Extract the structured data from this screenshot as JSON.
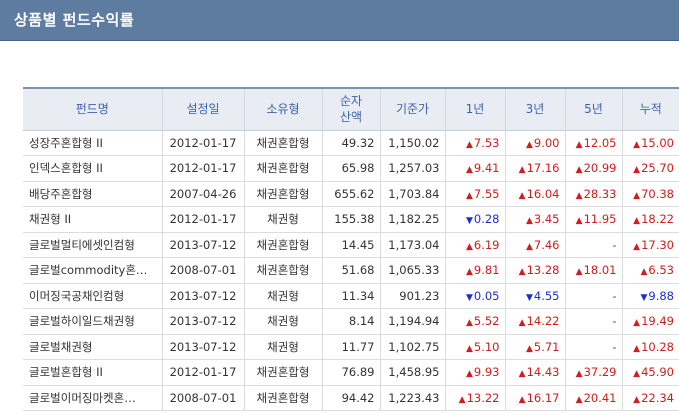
{
  "header": {
    "title": "상품별 펀드수익률"
  },
  "table": {
    "columns": [
      "펀드명",
      "설정일",
      "소유형",
      "순자\n산액",
      "기준가",
      "1년",
      "3년",
      "5년",
      "누적"
    ],
    "rows": [
      {
        "name": "성장주혼합형 II",
        "date": "2012-01-17",
        "type": "채권혼합형",
        "assets": "49.32",
        "nav": "1,150.02",
        "y1": "7.53",
        "y1d": "up",
        "y3": "9.00",
        "y3d": "up",
        "y5": "12.05",
        "y5d": "up",
        "cum": "15.00",
        "cumd": "up"
      },
      {
        "name": "인덱스혼합형 II",
        "date": "2012-01-17",
        "type": "채권혼합형",
        "assets": "65.98",
        "nav": "1,257.03",
        "y1": "9.41",
        "y1d": "up",
        "y3": "17.16",
        "y3d": "up",
        "y5": "20.99",
        "y5d": "up",
        "cum": "25.70",
        "cumd": "up"
      },
      {
        "name": "배당주혼합형",
        "date": "2007-04-26",
        "type": "채권혼합형",
        "assets": "655.62",
        "nav": "1,703.84",
        "y1": "7.55",
        "y1d": "up",
        "y3": "16.04",
        "y3d": "up",
        "y5": "28.33",
        "y5d": "up",
        "cum": "70.38",
        "cumd": "up"
      },
      {
        "name": "채권형 II",
        "date": "2012-01-17",
        "type": "채권형",
        "assets": "155.38",
        "nav": "1,182.25",
        "y1": "0.28",
        "y1d": "down",
        "y3": "3.45",
        "y3d": "up",
        "y5": "11.95",
        "y5d": "up",
        "cum": "18.22",
        "cumd": "up"
      },
      {
        "name": "글로벌멀티에셋인컴형",
        "date": "2013-07-12",
        "type": "채권혼합형",
        "assets": "14.45",
        "nav": "1,173.04",
        "y1": "6.19",
        "y1d": "up",
        "y3": "7.46",
        "y3d": "up",
        "y5": "-",
        "y5d": "none",
        "cum": "17.30",
        "cumd": "up"
      },
      {
        "name": "글로벌commodity혼…",
        "date": "2008-07-01",
        "type": "채권혼합형",
        "assets": "51.68",
        "nav": "1,065.33",
        "y1": "9.81",
        "y1d": "up",
        "y3": "13.28",
        "y3d": "up",
        "y5": "18.01",
        "y5d": "up",
        "cum": "6.53",
        "cumd": "up"
      },
      {
        "name": "이머징국공채인컴형",
        "date": "2013-07-12",
        "type": "채권형",
        "assets": "11.34",
        "nav": "901.23",
        "y1": "0.05",
        "y1d": "down",
        "y3": "4.55",
        "y3d": "down",
        "y5": "-",
        "y5d": "none",
        "cum": "9.88",
        "cumd": "down"
      },
      {
        "name": "글로벌하이일드채권형",
        "date": "2013-07-12",
        "type": "채권형",
        "assets": "8.14",
        "nav": "1,194.94",
        "y1": "5.52",
        "y1d": "up",
        "y3": "14.22",
        "y3d": "up",
        "y5": "-",
        "y5d": "none",
        "cum": "19.49",
        "cumd": "up"
      },
      {
        "name": "글로벌채권형",
        "date": "2013-07-12",
        "type": "채권형",
        "assets": "11.77",
        "nav": "1,102.75",
        "y1": "5.10",
        "y1d": "up",
        "y3": "5.71",
        "y3d": "up",
        "y5": "-",
        "y5d": "none",
        "cum": "10.28",
        "cumd": "up"
      },
      {
        "name": "글로벌혼합형 II",
        "date": "2012-01-17",
        "type": "채권혼합형",
        "assets": "76.89",
        "nav": "1,458.95",
        "y1": "9.93",
        "y1d": "up",
        "y3": "14.43",
        "y3d": "up",
        "y5": "37.29",
        "y5d": "up",
        "cum": "45.90",
        "cumd": "up"
      },
      {
        "name": "글로벌이머징마켓혼…",
        "date": "2008-07-01",
        "type": "채권혼합형",
        "assets": "94.42",
        "nav": "1,223.43",
        "y1": "13.22",
        "y1d": "up",
        "y3": "16.17",
        "y3d": "up",
        "y5": "20.41",
        "y5d": "up",
        "cum": "22.34",
        "cumd": "up"
      }
    ]
  },
  "colors": {
    "header_bg": "#5d7ca0",
    "header_text": "#ffffff",
    "up": "#d11d1d",
    "down": "#1a2fd0",
    "column_header_text": "#3d62a8"
  },
  "icons": {
    "up": "triangle-up-icon",
    "down": "triangle-down-icon"
  }
}
